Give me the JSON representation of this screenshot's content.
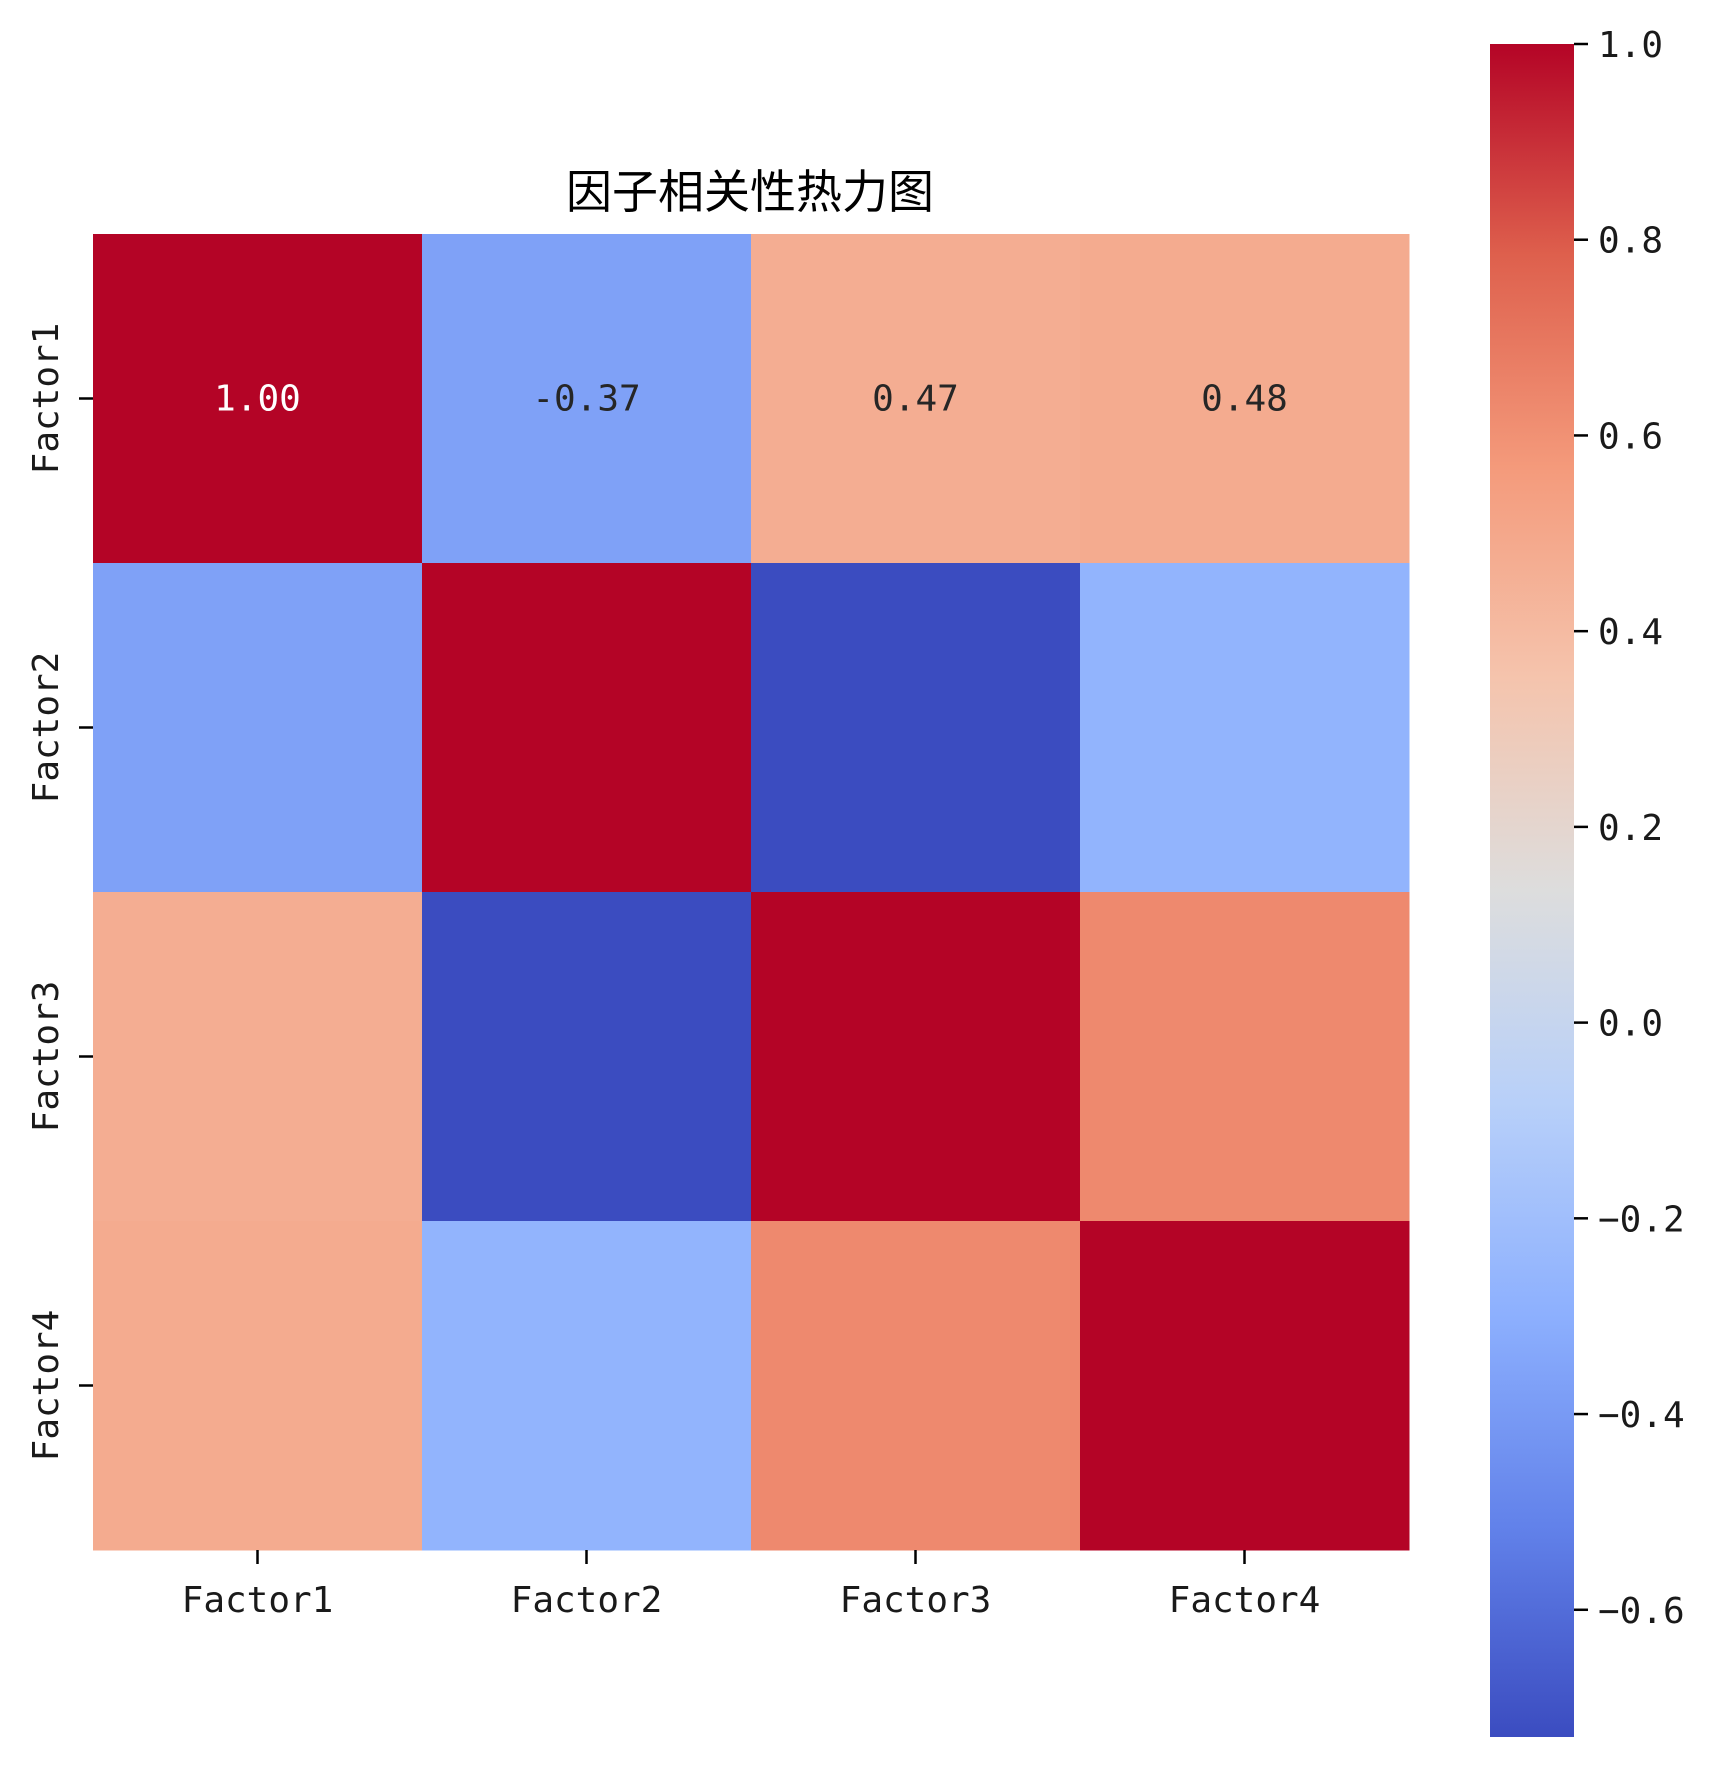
{
  "chart_data": {
    "type": "heatmap",
    "title": "因子相关性热力图",
    "x_categories": [
      "Factor1",
      "Factor2",
      "Factor3",
      "Factor4"
    ],
    "y_categories": [
      "Factor1",
      "Factor2",
      "Factor3",
      "Factor4"
    ],
    "values": [
      [
        1.0,
        -0.37,
        0.47,
        0.48
      ],
      [
        -0.37,
        1.0,
        -0.73,
        -0.27
      ],
      [
        0.47,
        -0.73,
        1.0,
        0.63
      ],
      [
        0.48,
        -0.27,
        0.63,
        1.0
      ]
    ],
    "annotations": [
      [
        "1.00",
        "-0.37",
        "0.47",
        "0.48"
      ],
      [
        "",
        "",
        "",
        ""
      ],
      [
        "",
        "",
        "",
        ""
      ],
      [
        "",
        "",
        "",
        ""
      ]
    ],
    "colormap": "coolwarm",
    "vmin": -0.73,
    "vmax": 1.0,
    "colorbar_ticks": [
      "1.0",
      "0.8",
      "0.6",
      "0.4",
      "0.2",
      "0.0",
      "−0.2",
      "−0.4",
      "−0.6"
    ],
    "colorbar_tick_values": [
      1.0,
      0.8,
      0.6,
      0.4,
      0.2,
      0.0,
      -0.2,
      -0.4,
      -0.6
    ],
    "legend": "colorbar-right"
  }
}
